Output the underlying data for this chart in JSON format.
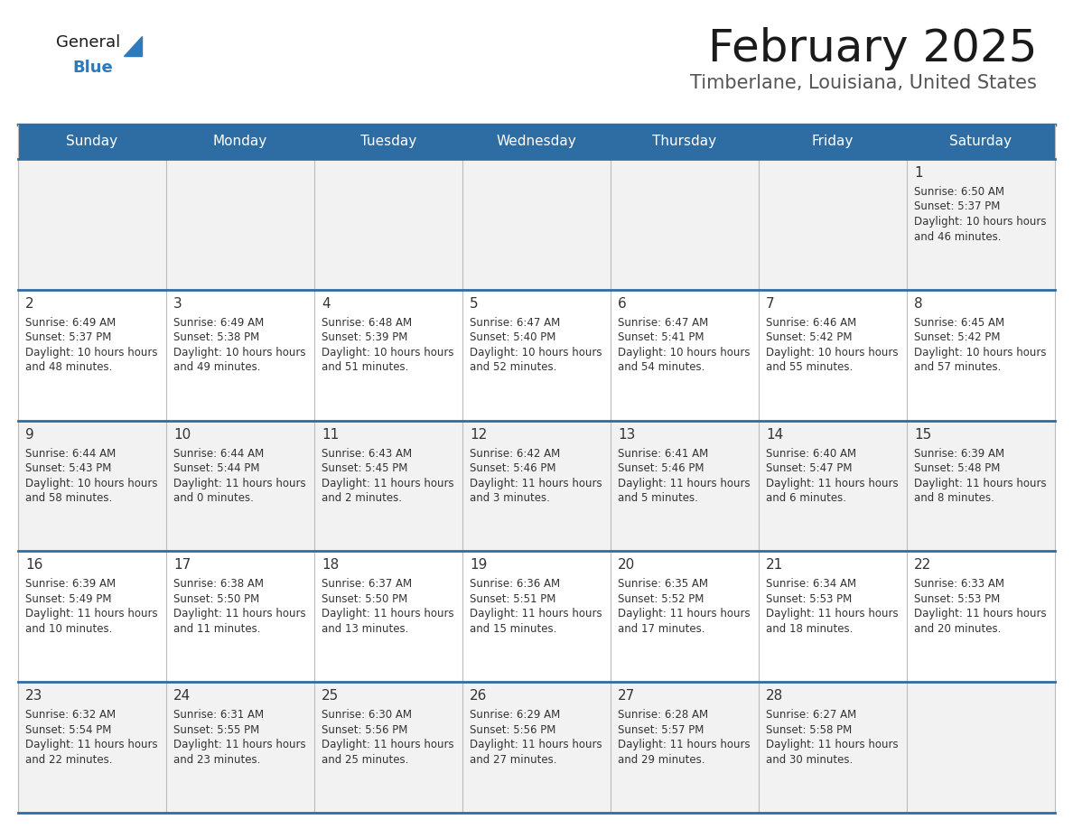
{
  "title": "February 2025",
  "subtitle": "Timberlane, Louisiana, United States",
  "header_bg": "#2E6DA4",
  "header_text": "#FFFFFF",
  "cell_bg_odd": "#F2F2F2",
  "cell_bg_even": "#FFFFFF",
  "day_number_color": "#333333",
  "info_text_color": "#333333",
  "border_color": "#2E6DA4",
  "days_of_week": [
    "Sunday",
    "Monday",
    "Tuesday",
    "Wednesday",
    "Thursday",
    "Friday",
    "Saturday"
  ],
  "logo_general_color": "#1a1a1a",
  "logo_blue_color": "#2E7ABF",
  "calendar_data": [
    [
      {
        "day": null,
        "sunrise": null,
        "sunset": null,
        "daylight": null
      },
      {
        "day": null,
        "sunrise": null,
        "sunset": null,
        "daylight": null
      },
      {
        "day": null,
        "sunrise": null,
        "sunset": null,
        "daylight": null
      },
      {
        "day": null,
        "sunrise": null,
        "sunset": null,
        "daylight": null
      },
      {
        "day": null,
        "sunrise": null,
        "sunset": null,
        "daylight": null
      },
      {
        "day": null,
        "sunrise": null,
        "sunset": null,
        "daylight": null
      },
      {
        "day": 1,
        "sunrise": "6:50 AM",
        "sunset": "5:37 PM",
        "daylight": "10 hours and 46 minutes."
      }
    ],
    [
      {
        "day": 2,
        "sunrise": "6:49 AM",
        "sunset": "5:37 PM",
        "daylight": "10 hours and 48 minutes."
      },
      {
        "day": 3,
        "sunrise": "6:49 AM",
        "sunset": "5:38 PM",
        "daylight": "10 hours and 49 minutes."
      },
      {
        "day": 4,
        "sunrise": "6:48 AM",
        "sunset": "5:39 PM",
        "daylight": "10 hours and 51 minutes."
      },
      {
        "day": 5,
        "sunrise": "6:47 AM",
        "sunset": "5:40 PM",
        "daylight": "10 hours and 52 minutes."
      },
      {
        "day": 6,
        "sunrise": "6:47 AM",
        "sunset": "5:41 PM",
        "daylight": "10 hours and 54 minutes."
      },
      {
        "day": 7,
        "sunrise": "6:46 AM",
        "sunset": "5:42 PM",
        "daylight": "10 hours and 55 minutes."
      },
      {
        "day": 8,
        "sunrise": "6:45 AM",
        "sunset": "5:42 PM",
        "daylight": "10 hours and 57 minutes."
      }
    ],
    [
      {
        "day": 9,
        "sunrise": "6:44 AM",
        "sunset": "5:43 PM",
        "daylight": "10 hours and 58 minutes."
      },
      {
        "day": 10,
        "sunrise": "6:44 AM",
        "sunset": "5:44 PM",
        "daylight": "11 hours and 0 minutes."
      },
      {
        "day": 11,
        "sunrise": "6:43 AM",
        "sunset": "5:45 PM",
        "daylight": "11 hours and 2 minutes."
      },
      {
        "day": 12,
        "sunrise": "6:42 AM",
        "sunset": "5:46 PM",
        "daylight": "11 hours and 3 minutes."
      },
      {
        "day": 13,
        "sunrise": "6:41 AM",
        "sunset": "5:46 PM",
        "daylight": "11 hours and 5 minutes."
      },
      {
        "day": 14,
        "sunrise": "6:40 AM",
        "sunset": "5:47 PM",
        "daylight": "11 hours and 6 minutes."
      },
      {
        "day": 15,
        "sunrise": "6:39 AM",
        "sunset": "5:48 PM",
        "daylight": "11 hours and 8 minutes."
      }
    ],
    [
      {
        "day": 16,
        "sunrise": "6:39 AM",
        "sunset": "5:49 PM",
        "daylight": "11 hours and 10 minutes."
      },
      {
        "day": 17,
        "sunrise": "6:38 AM",
        "sunset": "5:50 PM",
        "daylight": "11 hours and 11 minutes."
      },
      {
        "day": 18,
        "sunrise": "6:37 AM",
        "sunset": "5:50 PM",
        "daylight": "11 hours and 13 minutes."
      },
      {
        "day": 19,
        "sunrise": "6:36 AM",
        "sunset": "5:51 PM",
        "daylight": "11 hours and 15 minutes."
      },
      {
        "day": 20,
        "sunrise": "6:35 AM",
        "sunset": "5:52 PM",
        "daylight": "11 hours and 17 minutes."
      },
      {
        "day": 21,
        "sunrise": "6:34 AM",
        "sunset": "5:53 PM",
        "daylight": "11 hours and 18 minutes."
      },
      {
        "day": 22,
        "sunrise": "6:33 AM",
        "sunset": "5:53 PM",
        "daylight": "11 hours and 20 minutes."
      }
    ],
    [
      {
        "day": 23,
        "sunrise": "6:32 AM",
        "sunset": "5:54 PM",
        "daylight": "11 hours and 22 minutes."
      },
      {
        "day": 24,
        "sunrise": "6:31 AM",
        "sunset": "5:55 PM",
        "daylight": "11 hours and 23 minutes."
      },
      {
        "day": 25,
        "sunrise": "6:30 AM",
        "sunset": "5:56 PM",
        "daylight": "11 hours and 25 minutes."
      },
      {
        "day": 26,
        "sunrise": "6:29 AM",
        "sunset": "5:56 PM",
        "daylight": "11 hours and 27 minutes."
      },
      {
        "day": 27,
        "sunrise": "6:28 AM",
        "sunset": "5:57 PM",
        "daylight": "11 hours and 29 minutes."
      },
      {
        "day": 28,
        "sunrise": "6:27 AM",
        "sunset": "5:58 PM",
        "daylight": "11 hours and 30 minutes."
      },
      {
        "day": null,
        "sunrise": null,
        "sunset": null,
        "daylight": null
      }
    ]
  ]
}
